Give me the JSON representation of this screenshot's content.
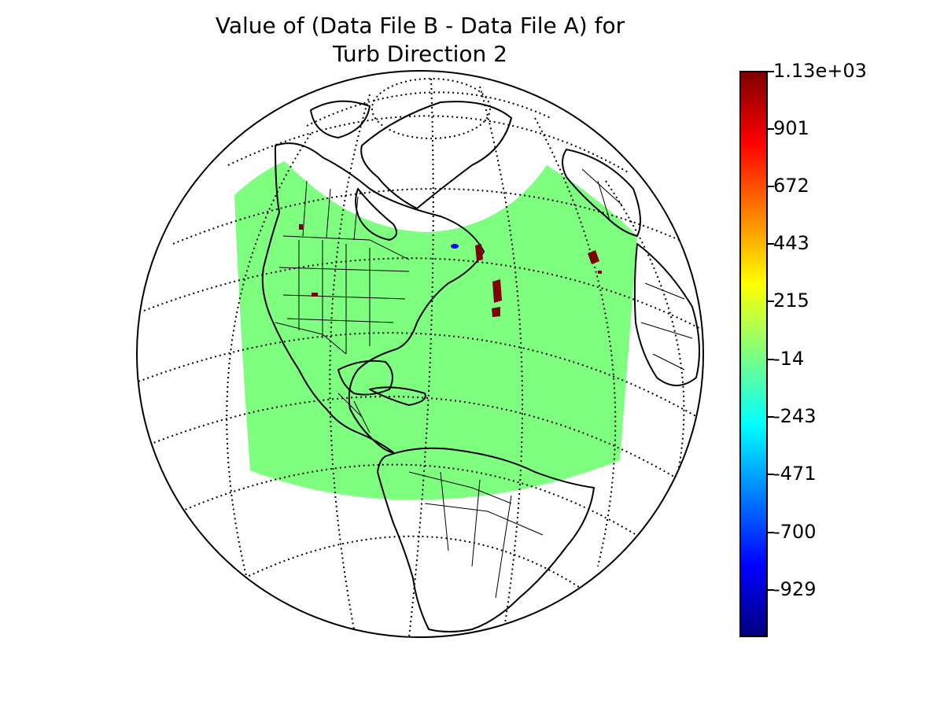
{
  "title": {
    "line1": "Value of (Data File B - Data File A) for",
    "line2": "Turb Direction 2"
  },
  "map": {
    "projection": "orthographic",
    "region": "Americas (North America, Central America, South America, Atlantic, Western Europe / Africa edge)",
    "graticule_style": "dotted",
    "coastline_color": "#000000",
    "data_field_color": "#7fff7f",
    "anomaly_color": "#7f0000"
  },
  "colorbar": {
    "colormap": "jet",
    "tick_labels": [
      "1.13e+03",
      "901",
      "672",
      "443",
      "215",
      "-14",
      "-243",
      "-471",
      "-700",
      "-929"
    ]
  }
}
